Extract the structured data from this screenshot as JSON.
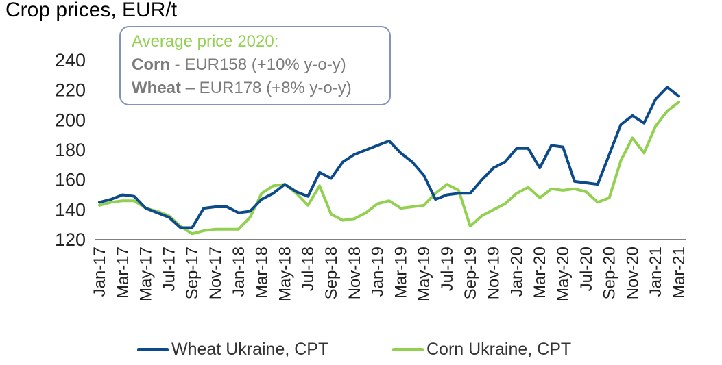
{
  "title": "Crop prices, EUR/t",
  "annotation": {
    "heading": "Average price 2020:",
    "corn_label": "Corn",
    "corn_text": " - EUR158 (+10% y-o-y)",
    "wheat_label": "Wheat",
    "wheat_text": " – EUR178 (+8% y-o-y)"
  },
  "colors": {
    "wheat": "#0d4a8a",
    "corn": "#92d050",
    "axis": "#333333",
    "annotation_border": "#8193bd"
  },
  "chart_data": {
    "type": "line",
    "title": "Crop prices, EUR/t",
    "xlabel": "",
    "ylabel": "",
    "ylim": [
      120,
      240
    ],
    "yticks": [
      120,
      140,
      160,
      180,
      200,
      220,
      240
    ],
    "grid": false,
    "legend_position": "bottom",
    "x": [
      "Jan-17",
      "Feb-17",
      "Mar-17",
      "Apr-17",
      "May-17",
      "Jun-17",
      "Jul-17",
      "Aug-17",
      "Sep-17",
      "Oct-17",
      "Nov-17",
      "Dec-17",
      "Jan-18",
      "Feb-18",
      "Mar-18",
      "Apr-18",
      "May-18",
      "Jun-18",
      "Jul-18",
      "Aug-18",
      "Sep-18",
      "Oct-18",
      "Nov-18",
      "Dec-18",
      "Jan-19",
      "Feb-19",
      "Mar-19",
      "Apr-19",
      "May-19",
      "Jun-19",
      "Jul-19",
      "Aug-19",
      "Sep-19",
      "Oct-19",
      "Nov-19",
      "Dec-19",
      "Jan-20",
      "Feb-20",
      "Mar-20",
      "Apr-20",
      "May-20",
      "Jun-20",
      "Jul-20",
      "Aug-20",
      "Sep-20",
      "Oct-20",
      "Nov-20",
      "Dec-20",
      "Jan-21",
      "Feb-21",
      "Mar-21"
    ],
    "xtick_labels": [
      "Jan-17",
      "Mar-17",
      "May-17",
      "Jul-17",
      "Sep-17",
      "Nov-17",
      "Jan-18",
      "Mar-18",
      "May-18",
      "Jul-18",
      "Sep-18",
      "Nov-18",
      "Jan-19",
      "Mar-19",
      "May-19",
      "Jul-19",
      "Sep-19",
      "Nov-19",
      "Jan-20",
      "Mar-20",
      "May-20",
      "Jul-20",
      "Sep-20",
      "Nov-20",
      "Jan-21",
      "Mar-21"
    ],
    "series": [
      {
        "name": "Wheat Ukraine, CPT",
        "color": "#0d4a8a",
        "values": [
          145,
          147,
          150,
          149,
          141,
          138,
          135,
          128,
          128,
          141,
          142,
          142,
          138,
          139,
          147,
          151,
          157,
          152,
          149,
          165,
          161,
          172,
          177,
          180,
          183,
          186,
          178,
          172,
          163,
          147,
          150,
          151,
          151,
          160,
          168,
          172,
          181,
          181,
          168,
          183,
          182,
          159,
          158,
          157,
          177,
          197,
          203,
          198,
          214,
          222,
          216
        ]
      },
      {
        "name": "Corn Ukraine, CPT",
        "color": "#92d050",
        "values": [
          143,
          145,
          146,
          146,
          141,
          139,
          136,
          129,
          124,
          126,
          127,
          127,
          127,
          135,
          151,
          156,
          157,
          151,
          143,
          156,
          137,
          133,
          134,
          138,
          144,
          146,
          141,
          142,
          143,
          151,
          157,
          153,
          129,
          136,
          140,
          144,
          151,
          155,
          148,
          154,
          153,
          154,
          152,
          145,
          148,
          173,
          188,
          178,
          196,
          206,
          212
        ]
      }
    ]
  }
}
